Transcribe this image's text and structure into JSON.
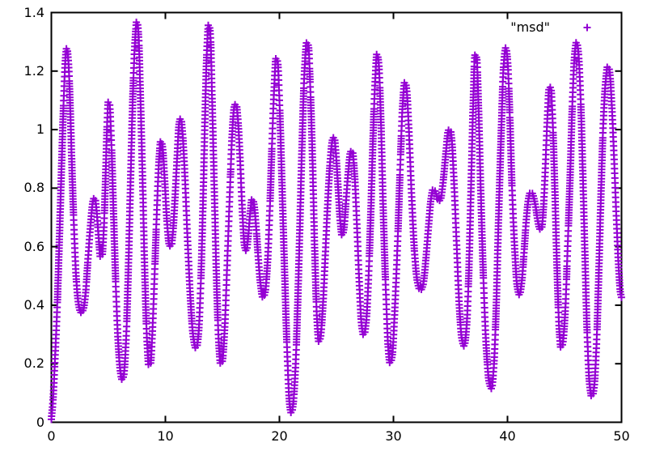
{
  "figure": {
    "background": "#ffffff",
    "axis_color": "#000000",
    "series_color": "#9400d3",
    "legend": {
      "label": "\"msd\"",
      "marker": "plus-icon"
    }
  },
  "chart_data": {
    "type": "scatter",
    "title": "",
    "xlabel": "",
    "ylabel": "",
    "xlim": [
      0,
      50
    ],
    "ylim": [
      0,
      1.4
    ],
    "grid": false,
    "legend_position": "top-right-inside",
    "legend_entries": [
      "\"msd\""
    ],
    "marker": "plus",
    "x_axis": {
      "tick_values": [
        0,
        10,
        20,
        30,
        40,
        50
      ],
      "tick_labels": [
        "0",
        "10",
        "20",
        "30",
        "40",
        "50"
      ]
    },
    "y_axis": {
      "tick_values": [
        0,
        0.2,
        0.4,
        0.6,
        0.8,
        1.0,
        1.2,
        1.4
      ],
      "tick_labels": [
        "0",
        "0.2",
        "0.4",
        "0.6",
        "0.8",
        "1",
        "1.2",
        "1.4"
      ]
    },
    "series": [
      {
        "name": "msd",
        "color": "#9400d3",
        "points": [
          [
            0,
            0.01
          ],
          [
            0.15,
            0.08
          ],
          [
            0.3,
            0.2
          ],
          [
            0.5,
            0.38
          ],
          [
            0.7,
            0.62
          ],
          [
            0.9,
            0.88
          ],
          [
            1.1,
            1.12
          ],
          [
            1.25,
            1.25
          ],
          [
            1.35,
            1.28
          ],
          [
            1.5,
            1.23
          ],
          [
            1.65,
            1.08
          ],
          [
            1.8,
            0.88
          ],
          [
            2,
            0.65
          ],
          [
            2.2,
            0.48
          ],
          [
            2.4,
            0.4
          ],
          [
            2.6,
            0.375
          ],
          [
            2.8,
            0.385
          ],
          [
            3,
            0.44
          ],
          [
            3.2,
            0.55
          ],
          [
            3.45,
            0.68
          ],
          [
            3.65,
            0.755
          ],
          [
            3.8,
            0.77
          ],
          [
            3.95,
            0.73
          ],
          [
            4.15,
            0.63
          ],
          [
            4.3,
            0.565
          ],
          [
            4.45,
            0.57
          ],
          [
            4.6,
            0.66
          ],
          [
            4.75,
            0.83
          ],
          [
            4.9,
            1.03
          ],
          [
            5,
            1.1
          ],
          [
            5.1,
            1.09
          ],
          [
            5.25,
            0.97
          ],
          [
            5.45,
            0.72
          ],
          [
            5.65,
            0.47
          ],
          [
            5.85,
            0.28
          ],
          [
            6.05,
            0.175
          ],
          [
            6.2,
            0.145
          ],
          [
            6.35,
            0.16
          ],
          [
            6.55,
            0.28
          ],
          [
            6.75,
            0.52
          ],
          [
            6.95,
            0.83
          ],
          [
            7.15,
            1.12
          ],
          [
            7.35,
            1.31
          ],
          [
            7.5,
            1.375
          ],
          [
            7.65,
            1.32
          ],
          [
            7.8,
            1.13
          ],
          [
            8,
            0.83
          ],
          [
            8.2,
            0.5
          ],
          [
            8.4,
            0.27
          ],
          [
            8.55,
            0.19
          ],
          [
            8.7,
            0.2
          ],
          [
            8.85,
            0.3
          ],
          [
            9.05,
            0.5
          ],
          [
            9.25,
            0.72
          ],
          [
            9.45,
            0.9
          ],
          [
            9.6,
            0.965
          ],
          [
            9.75,
            0.94
          ],
          [
            9.95,
            0.82
          ],
          [
            10.15,
            0.68
          ],
          [
            10.35,
            0.605
          ],
          [
            10.5,
            0.6
          ],
          [
            10.65,
            0.645
          ],
          [
            10.85,
            0.77
          ],
          [
            11.05,
            0.92
          ],
          [
            11.2,
            1.02
          ],
          [
            11.35,
            1.04
          ],
          [
            11.5,
            0.99
          ],
          [
            11.7,
            0.85
          ],
          [
            11.95,
            0.62
          ],
          [
            12.2,
            0.42
          ],
          [
            12.45,
            0.29
          ],
          [
            12.7,
            0.25
          ],
          [
            12.9,
            0.3
          ],
          [
            13.1,
            0.47
          ],
          [
            13.3,
            0.75
          ],
          [
            13.5,
            1.08
          ],
          [
            13.65,
            1.28
          ],
          [
            13.8,
            1.365
          ],
          [
            13.95,
            1.32
          ],
          [
            14.1,
            1.1
          ],
          [
            14.3,
            0.78
          ],
          [
            14.5,
            0.47
          ],
          [
            14.7,
            0.26
          ],
          [
            14.85,
            0.195
          ],
          [
            15,
            0.21
          ],
          [
            15.2,
            0.32
          ],
          [
            15.4,
            0.52
          ],
          [
            15.65,
            0.78
          ],
          [
            15.85,
            0.98
          ],
          [
            16.05,
            1.08
          ],
          [
            16.2,
            1.09
          ],
          [
            16.35,
            1.04
          ],
          [
            16.55,
            0.9
          ],
          [
            16.75,
            0.72
          ],
          [
            16.95,
            0.6
          ],
          [
            17.1,
            0.585
          ],
          [
            17.25,
            0.63
          ],
          [
            17.45,
            0.72
          ],
          [
            17.6,
            0.765
          ],
          [
            17.75,
            0.75
          ],
          [
            17.95,
            0.67
          ],
          [
            18.15,
            0.56
          ],
          [
            18.35,
            0.47
          ],
          [
            18.55,
            0.425
          ],
          [
            18.75,
            0.445
          ],
          [
            18.95,
            0.54
          ],
          [
            19.15,
            0.72
          ],
          [
            19.35,
            0.95
          ],
          [
            19.55,
            1.15
          ],
          [
            19.7,
            1.245
          ],
          [
            19.85,
            1.23
          ],
          [
            20,
            1.1
          ],
          [
            20.2,
            0.85
          ],
          [
            20.45,
            0.52
          ],
          [
            20.7,
            0.22
          ],
          [
            20.9,
            0.06
          ],
          [
            21.05,
            0.03
          ],
          [
            21.2,
            0.06
          ],
          [
            21.4,
            0.18
          ],
          [
            21.6,
            0.4
          ],
          [
            21.8,
            0.68
          ],
          [
            22,
            0.97
          ],
          [
            22.2,
            1.2
          ],
          [
            22.4,
            1.3
          ],
          [
            22.55,
            1.285
          ],
          [
            22.7,
            1.15
          ],
          [
            22.9,
            0.9
          ],
          [
            23.1,
            0.58
          ],
          [
            23.3,
            0.35
          ],
          [
            23.45,
            0.275
          ],
          [
            23.6,
            0.29
          ],
          [
            23.8,
            0.39
          ],
          [
            24,
            0.55
          ],
          [
            24.2,
            0.72
          ],
          [
            24.45,
            0.89
          ],
          [
            24.65,
            0.965
          ],
          [
            24.8,
            0.975
          ],
          [
            24.95,
            0.92
          ],
          [
            25.15,
            0.8
          ],
          [
            25.35,
            0.68
          ],
          [
            25.5,
            0.635
          ],
          [
            25.65,
            0.66
          ],
          [
            25.85,
            0.76
          ],
          [
            26.05,
            0.86
          ],
          [
            26.25,
            0.925
          ],
          [
            26.4,
            0.925
          ],
          [
            26.6,
            0.84
          ],
          [
            26.8,
            0.67
          ],
          [
            27,
            0.48
          ],
          [
            27.2,
            0.335
          ],
          [
            27.4,
            0.295
          ],
          [
            27.6,
            0.34
          ],
          [
            27.8,
            0.48
          ],
          [
            28,
            0.7
          ],
          [
            28.2,
            0.96
          ],
          [
            28.4,
            1.17
          ],
          [
            28.55,
            1.26
          ],
          [
            28.7,
            1.23
          ],
          [
            28.9,
            1.03
          ],
          [
            29.1,
            0.73
          ],
          [
            29.35,
            0.43
          ],
          [
            29.55,
            0.25
          ],
          [
            29.7,
            0.2
          ],
          [
            29.9,
            0.23
          ],
          [
            30.1,
            0.37
          ],
          [
            30.35,
            0.6
          ],
          [
            30.6,
            0.88
          ],
          [
            30.8,
            1.08
          ],
          [
            31,
            1.165
          ],
          [
            31.15,
            1.14
          ],
          [
            31.35,
            1
          ],
          [
            31.6,
            0.77
          ],
          [
            31.85,
            0.58
          ],
          [
            32.1,
            0.48
          ],
          [
            32.35,
            0.45
          ],
          [
            32.6,
            0.47
          ],
          [
            32.85,
            0.56
          ],
          [
            33.1,
            0.68
          ],
          [
            33.3,
            0.765
          ],
          [
            33.5,
            0.8
          ],
          [
            33.7,
            0.785
          ],
          [
            33.95,
            0.755
          ],
          [
            34.15,
            0.765
          ],
          [
            34.35,
            0.82
          ],
          [
            34.6,
            0.92
          ],
          [
            34.8,
            0.995
          ],
          [
            34.95,
            1.005
          ],
          [
            35.1,
            0.97
          ],
          [
            35.3,
            0.83
          ],
          [
            35.55,
            0.6
          ],
          [
            35.8,
            0.38
          ],
          [
            36,
            0.285
          ],
          [
            36.2,
            0.26
          ],
          [
            36.4,
            0.32
          ],
          [
            36.6,
            0.5
          ],
          [
            36.8,
            0.8
          ],
          [
            37,
            1.1
          ],
          [
            37.15,
            1.255
          ],
          [
            37.3,
            1.245
          ],
          [
            37.45,
            1.09
          ],
          [
            37.65,
            0.8
          ],
          [
            37.9,
            0.48
          ],
          [
            38.15,
            0.25
          ],
          [
            38.4,
            0.135
          ],
          [
            38.6,
            0.115
          ],
          [
            38.8,
            0.19
          ],
          [
            39,
            0.38
          ],
          [
            39.2,
            0.67
          ],
          [
            39.45,
            0.99
          ],
          [
            39.65,
            1.21
          ],
          [
            39.85,
            1.28
          ],
          [
            40,
            1.24
          ],
          [
            40.2,
            1.05
          ],
          [
            40.4,
            0.8
          ],
          [
            40.65,
            0.58
          ],
          [
            40.85,
            0.465
          ],
          [
            41.05,
            0.435
          ],
          [
            41.25,
            0.48
          ],
          [
            41.45,
            0.58
          ],
          [
            41.65,
            0.69
          ],
          [
            41.85,
            0.765
          ],
          [
            42.05,
            0.79
          ],
          [
            42.25,
            0.775
          ],
          [
            42.45,
            0.74
          ],
          [
            42.65,
            0.69
          ],
          [
            42.85,
            0.66
          ],
          [
            43,
            0.665
          ],
          [
            43.15,
            0.73
          ],
          [
            43.3,
            0.85
          ],
          [
            43.5,
            1.04
          ],
          [
            43.65,
            1.14
          ],
          [
            43.8,
            1.145
          ],
          [
            43.95,
            1.04
          ],
          [
            44.15,
            0.8
          ],
          [
            44.35,
            0.52
          ],
          [
            44.55,
            0.31
          ],
          [
            44.7,
            0.25
          ],
          [
            44.85,
            0.27
          ],
          [
            45.05,
            0.37
          ],
          [
            45.25,
            0.57
          ],
          [
            45.5,
            0.85
          ],
          [
            45.7,
            1.1
          ],
          [
            45.9,
            1.26
          ],
          [
            46.05,
            1.3
          ],
          [
            46.2,
            1.27
          ],
          [
            46.4,
            1.12
          ],
          [
            46.6,
            0.86
          ],
          [
            46.8,
            0.56
          ],
          [
            47,
            0.29
          ],
          [
            47.2,
            0.13
          ],
          [
            47.4,
            0.085
          ],
          [
            47.6,
            0.12
          ],
          [
            47.8,
            0.26
          ],
          [
            48,
            0.5
          ],
          [
            48.2,
            0.78
          ],
          [
            48.4,
            1.02
          ],
          [
            48.6,
            1.16
          ],
          [
            48.8,
            1.22
          ],
          [
            48.95,
            1.2
          ],
          [
            49.15,
            1.08
          ],
          [
            49.35,
            0.9
          ],
          [
            49.55,
            0.7
          ],
          [
            49.75,
            0.53
          ],
          [
            49.9,
            0.445
          ],
          [
            50,
            0.425
          ]
        ]
      }
    ]
  }
}
